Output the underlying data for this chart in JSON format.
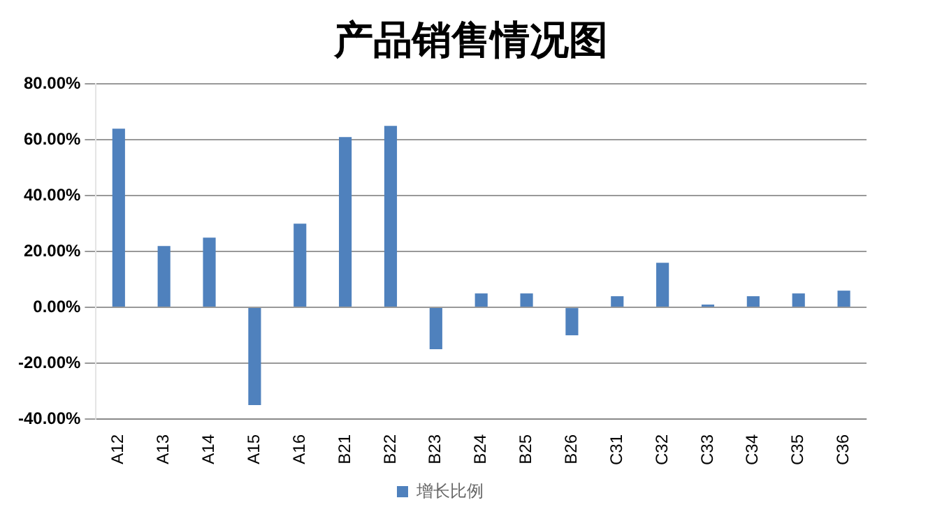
{
  "chart_data": {
    "type": "bar",
    "title": "产品销售情况图",
    "categories": [
      "A12",
      "A13",
      "A14",
      "A15",
      "A16",
      "B21",
      "B22",
      "B23",
      "B24",
      "B25",
      "B26",
      "C31",
      "C32",
      "C33",
      "C34",
      "C35",
      "C36"
    ],
    "series": [
      {
        "name": "增长比例",
        "color": "#4f81bd",
        "values": [
          64,
          22,
          25,
          -35,
          30,
          61,
          65,
          -15,
          5,
          5,
          -10,
          4,
          16,
          1,
          4,
          5,
          6
        ]
      }
    ],
    "ylim": [
      -40,
      80
    ],
    "yticks": [
      {
        "value": -40,
        "label": "-40.00%"
      },
      {
        "value": -20,
        "label": "-20.00%"
      },
      {
        "value": 0,
        "label": "0.00%"
      },
      {
        "value": 20,
        "label": "20.00%"
      },
      {
        "value": 40,
        "label": "40.00%"
      },
      {
        "value": 60,
        "label": "60.00%"
      },
      {
        "value": 80,
        "label": "80.00%"
      }
    ],
    "grid": "y",
    "legend": "bottom"
  }
}
